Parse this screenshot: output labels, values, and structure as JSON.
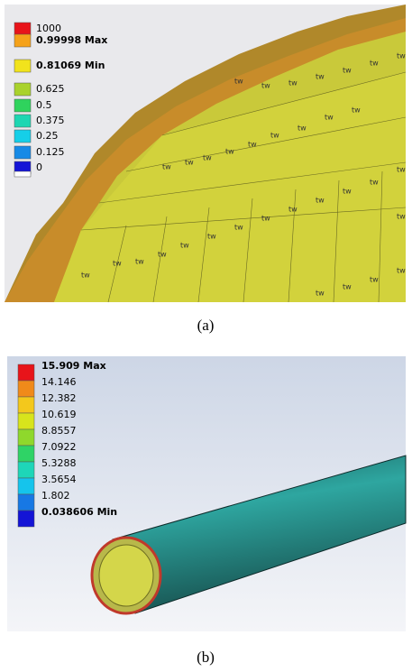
{
  "panel_a": {
    "legend": [
      {
        "label": "1000",
        "color": "#e8141a"
      },
      {
        "label": "0.99998 Max",
        "color": "#f5a21a"
      },
      {
        "label": "0.81069 Min",
        "color": "#f1e31c"
      },
      {
        "label": "0.625",
        "color": "#a9d22c"
      },
      {
        "label": "0.5",
        "color": "#2fd35d"
      },
      {
        "label": "0.375",
        "color": "#1ed6b2"
      },
      {
        "label": "0.25",
        "color": "#15cfe8"
      },
      {
        "label": "0.125",
        "color": "#178ae6"
      },
      {
        "label": "0",
        "color": "#1414d6"
      }
    ],
    "mesh_label": "tw",
    "caption": "(a)"
  },
  "panel_b": {
    "legend": [
      {
        "label": "15.909 Max",
        "color": "#e8141a"
      },
      {
        "label": "14.146",
        "color": "#f08a1a"
      },
      {
        "label": "12.382",
        "color": "#f3c81c"
      },
      {
        "label": "10.619",
        "color": "#d8e41c"
      },
      {
        "label": "8.8557",
        "color": "#8fd82c"
      },
      {
        "label": "7.0922",
        "color": "#2fd366"
      },
      {
        "label": "5.3288",
        "color": "#1ed6b8"
      },
      {
        "label": "3.5654",
        "color": "#15c4ec"
      },
      {
        "label": "1.802",
        "color": "#1778e4"
      },
      {
        "label": "0.038606 Min",
        "color": "#1414d6"
      }
    ],
    "caption": "(b)"
  }
}
